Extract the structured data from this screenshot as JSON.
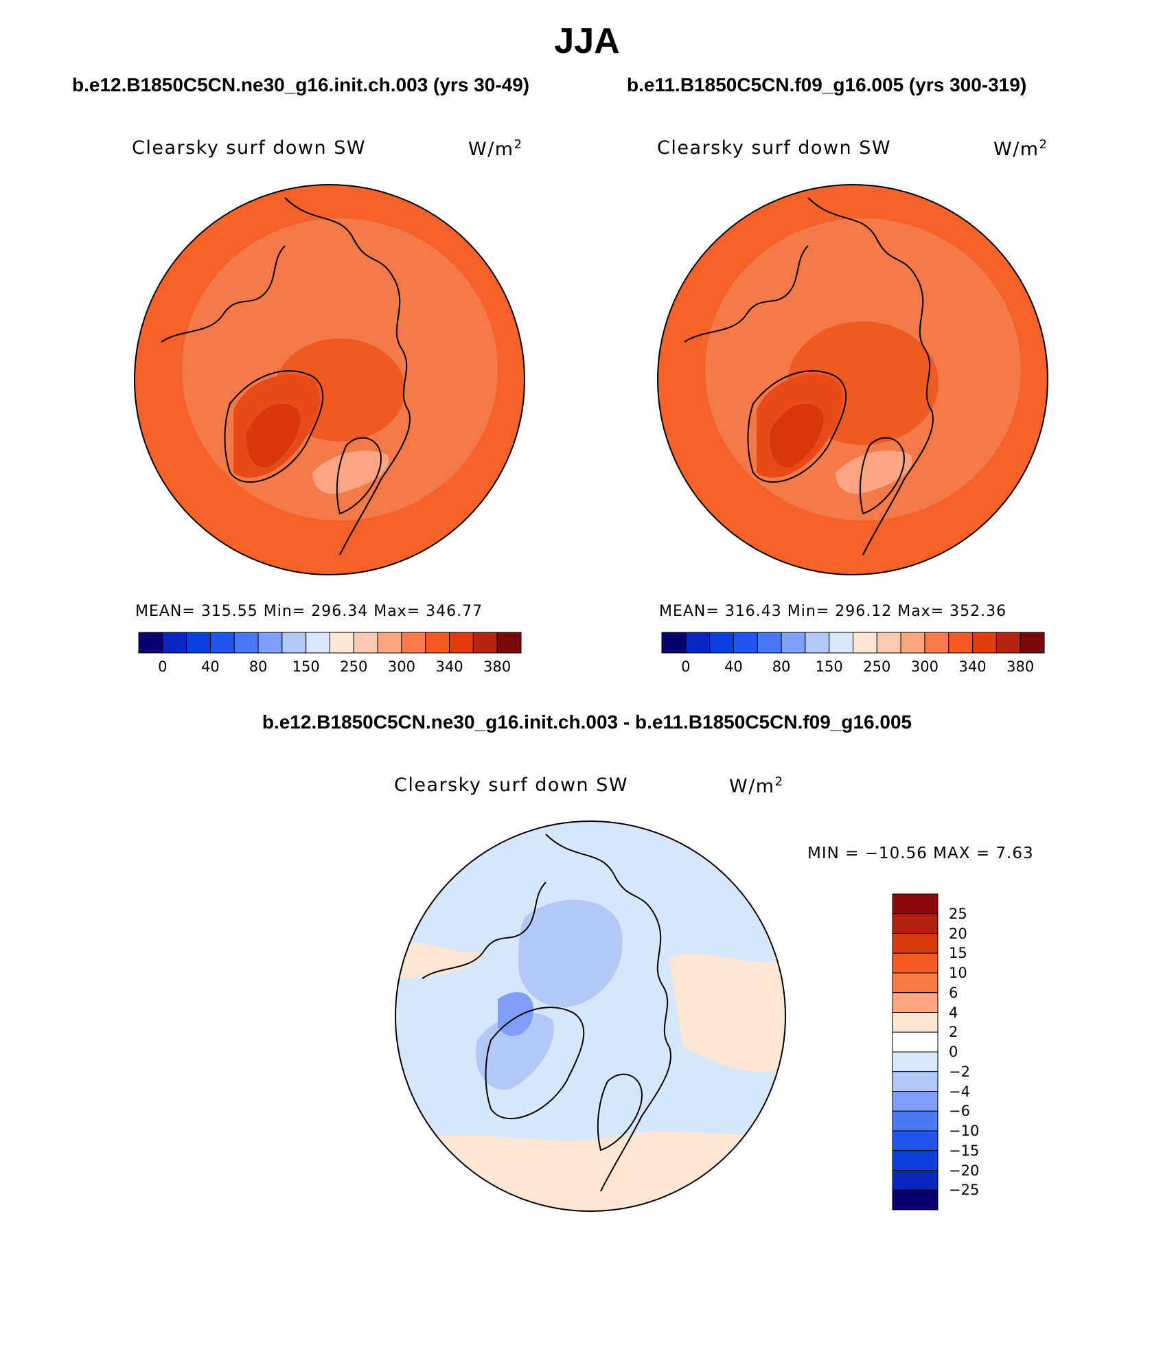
{
  "header": {
    "season": "JJA",
    "case1_title": "b.e12.B1850C5CN.ne30_g16.init.ch.003 (yrs 30-49)",
    "case2_title": "b.e11.B1850C5CN.f09_g16.005 (yrs 300-319)",
    "diff_title": "b.e12.B1850C5CN.ne30_g16.init.ch.003 - b.e11.B1850C5CN.f09_g16.005"
  },
  "chart_data": [
    {
      "type": "polar-contour-map",
      "projection": "North polar stereographic",
      "variable": "Clearsky surf down SW",
      "units": "W/m²",
      "stats": {
        "mean": 315.55,
        "min": 296.34,
        "max": 346.77
      },
      "stats_text": "MEAN= 315.55   Min= 296.34   Max= 346.77",
      "colorbar": {
        "levels": [
          "0",
          "40",
          "80",
          "150",
          "250",
          "300",
          "340",
          "380"
        ],
        "colors": [
          "#08006e",
          "#0a27c2",
          "#0d3fdc",
          "#2255f0",
          "#4b78f5",
          "#7d9ff7",
          "#b4c8f8",
          "#dbe8fb",
          "#fde6d4",
          "#fdccb0",
          "#fca682",
          "#fb7a4d",
          "#f55a22",
          "#df3d0e",
          "#b52510",
          "#7d0a0a"
        ]
      }
    },
    {
      "type": "polar-contour-map",
      "projection": "North polar stereographic",
      "variable": "Clearsky surf down SW",
      "units": "W/m²",
      "stats": {
        "mean": 316.43,
        "min": 296.12,
        "max": 352.36
      },
      "stats_text": "MEAN= 316.43   Min= 296.12   Max= 352.36",
      "colorbar": {
        "levels": [
          "0",
          "40",
          "80",
          "150",
          "250",
          "300",
          "340",
          "380"
        ],
        "colors": [
          "#08006e",
          "#0a27c2",
          "#0d3fdc",
          "#2255f0",
          "#4b78f5",
          "#7d9ff7",
          "#b4c8f8",
          "#dbe8fb",
          "#fde6d4",
          "#fdccb0",
          "#fca682",
          "#fb7a4d",
          "#f55a22",
          "#df3d0e",
          "#b52510",
          "#7d0a0a"
        ]
      }
    },
    {
      "type": "polar-contour-map-difference",
      "projection": "North polar stereographic",
      "variable": "Clearsky surf down SW",
      "units": "W/m²",
      "stats": {
        "min": -10.56,
        "max": 7.63
      },
      "stats_text": "MIN = −10.56  MAX =    7.63",
      "colorbar": {
        "levels": [
          "25",
          "20",
          "15",
          "10",
          "6",
          "4",
          "2",
          "0",
          "−2",
          "−4",
          "−6",
          "−10",
          "−15",
          "−20",
          "−25"
        ],
        "colors": [
          "#8b0a0a",
          "#b3200e",
          "#d83a10",
          "#f55a22",
          "#f97a45",
          "#fca682",
          "#fde6d4",
          "#ffffff",
          "#dbe8fb",
          "#b4c8f8",
          "#7d9ff7",
          "#4b78f5",
          "#2255f0",
          "#0d3fdc",
          "#0a27c2",
          "#08006e"
        ]
      }
    }
  ],
  "colors": {
    "ocean_base": "#f4622a",
    "ocean_inner": "#f47a4a",
    "land_warm": "#e84616",
    "greenland": "#d8360c",
    "scandinavia": "#fba583",
    "diff_base": "#d6e6fb",
    "diff_neg": "#b4c8f8",
    "diff_pos": "#fde6d4"
  }
}
